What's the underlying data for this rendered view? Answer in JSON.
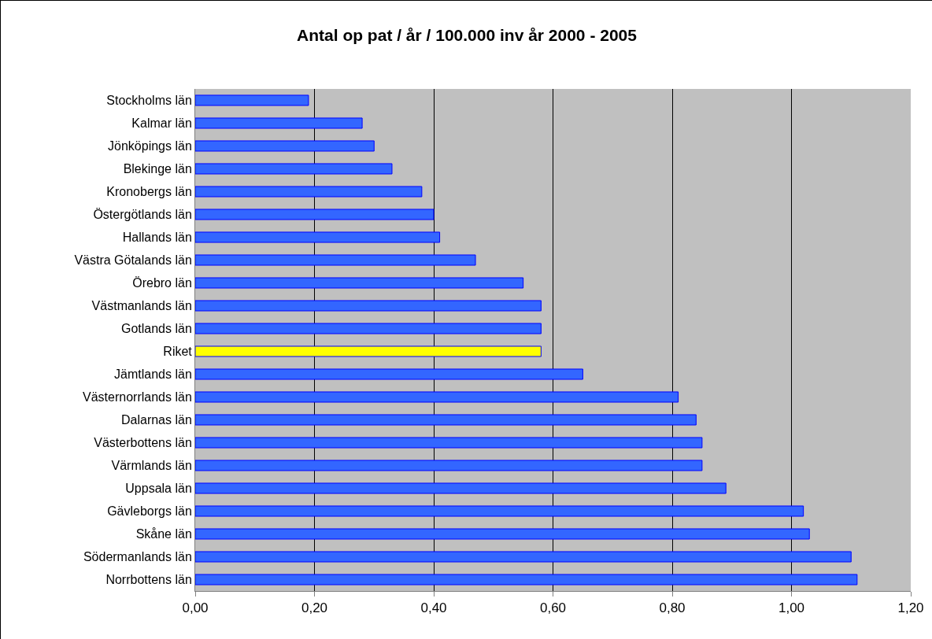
{
  "chart_data": {
    "type": "bar",
    "orientation": "horizontal",
    "title": "Antal op pat / år / 100.000 inv år 2000 - 2005",
    "categories": [
      "Stockholms län",
      "Kalmar län",
      "Jönköpings län",
      "Blekinge län",
      "Kronobergs län",
      "Östergötlands län",
      "Hallands län",
      "Västra Götalands län",
      "Örebro län",
      "Västmanlands län",
      "Gotlands län",
      "Riket",
      "Jämtlands län",
      "Västernorrlands län",
      "Dalarnas län",
      "Västerbottens län",
      "Värmlands län",
      "Uppsala län",
      "Gävleborgs län",
      "Skåne län",
      "Södermanlands län",
      "Norrbottens län"
    ],
    "values": [
      0.19,
      0.28,
      0.3,
      0.33,
      0.38,
      0.4,
      0.41,
      0.47,
      0.55,
      0.58,
      0.58,
      0.58,
      0.65,
      0.81,
      0.84,
      0.85,
      0.85,
      0.89,
      1.02,
      1.03,
      1.1,
      1.11
    ],
    "colors": [
      "#3366ff",
      "#3366ff",
      "#3366ff",
      "#3366ff",
      "#3366ff",
      "#3366ff",
      "#3366ff",
      "#3366ff",
      "#3366ff",
      "#3366ff",
      "#3366ff",
      "#ffff00",
      "#3366ff",
      "#3366ff",
      "#3366ff",
      "#3366ff",
      "#3366ff",
      "#3366ff",
      "#3366ff",
      "#3366ff",
      "#3366ff",
      "#3366ff"
    ],
    "xlim": [
      0,
      1.2
    ],
    "xticks": [
      {
        "value": 0,
        "label": "0,00"
      },
      {
        "value": 0.2,
        "label": "0,20"
      },
      {
        "value": 0.4,
        "label": "0,40"
      },
      {
        "value": 0.6,
        "label": "0,60"
      },
      {
        "value": 0.8,
        "label": "0,80"
      },
      {
        "value": 1.0,
        "label": "1,00"
      },
      {
        "value": 1.2,
        "label": "1,20"
      }
    ],
    "grid": "x",
    "legend": false
  }
}
